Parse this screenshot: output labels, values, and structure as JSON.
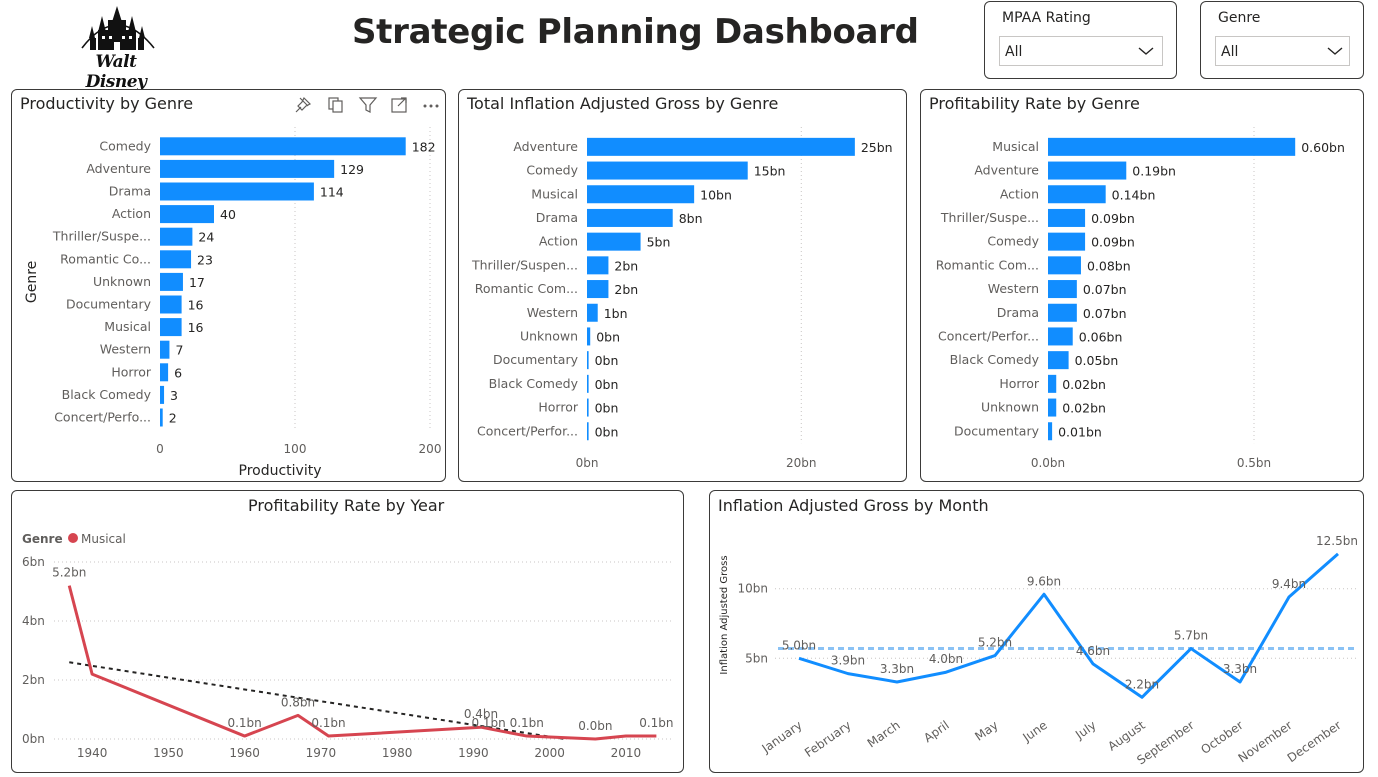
{
  "header": {
    "logo_text": "Walt Disney",
    "title": "Strategic Planning Dashboard"
  },
  "slicers": [
    {
      "label": "MPAA Rating",
      "value": "All"
    },
    {
      "label": "Genre",
      "value": "All"
    }
  ],
  "visuals": {
    "productivity": {
      "title": "Productivity by Genre"
    },
    "gross": {
      "title": "Total Inflation Adjusted Gross by Genre"
    },
    "profit": {
      "title": "Profitability Rate by Genre"
    },
    "year": {
      "title": "Profitability Rate by Year"
    },
    "month": {
      "title": "Inflation Adjusted Gross by Month"
    }
  },
  "colors": {
    "bar": "#118DFF",
    "line_year": "#D64550",
    "line_month": "#118DFF",
    "avg": "#8AC2F5",
    "trend": "#252423"
  },
  "chart_data": [
    {
      "id": "productivity",
      "type": "bar",
      "title": "Productivity by Genre",
      "ylabel": "Genre",
      "xlabel": "Productivity",
      "categories": [
        "Comedy",
        "Adventure",
        "Drama",
        "Action",
        "Thriller/Suspe...",
        "Romantic Co...",
        "Unknown",
        "Documentary",
        "Musical",
        "Western",
        "Horror",
        "Black Comedy",
        "Concert/Perfo..."
      ],
      "values": [
        182,
        129,
        114,
        40,
        24,
        23,
        17,
        16,
        16,
        7,
        6,
        3,
        2
      ],
      "data_labels": [
        "182",
        "129",
        "114",
        "40",
        "24",
        "23",
        "17",
        "16",
        "16",
        "7",
        "6",
        "3",
        "2"
      ],
      "xlim": [
        0,
        200
      ],
      "xticks": [
        0,
        100,
        200
      ],
      "xtick_labels": [
        "0",
        "100",
        "200"
      ],
      "grid": true
    },
    {
      "id": "gross",
      "type": "bar",
      "title": "Total Inflation Adjusted Gross by Genre",
      "categories": [
        "Adventure",
        "Comedy",
        "Musical",
        "Drama",
        "Action",
        "Thriller/Suspen...",
        "Romantic Com...",
        "Western",
        "Unknown",
        "Documentary",
        "Black Comedy",
        "Horror",
        "Concert/Perfor..."
      ],
      "values": [
        25,
        15,
        10,
        8,
        5,
        2,
        2,
        1,
        0.3,
        0.1,
        0.1,
        0.1,
        0.02
      ],
      "data_labels": [
        "25bn",
        "15bn",
        "10bn",
        "8bn",
        "5bn",
        "2bn",
        "2bn",
        "1bn",
        "0bn",
        "0bn",
        "0bn",
        "0bn",
        "0bn"
      ],
      "xlim": [
        0,
        28
      ],
      "xticks": [
        0,
        20
      ],
      "xtick_labels": [
        "0bn",
        "20bn"
      ],
      "grid": true
    },
    {
      "id": "profit",
      "type": "bar",
      "title": "Profitability Rate by Genre",
      "categories": [
        "Musical",
        "Adventure",
        "Action",
        "Thriller/Suspe...",
        "Comedy",
        "Romantic Com...",
        "Western",
        "Drama",
        "Concert/Perfor...",
        "Black Comedy",
        "Horror",
        "Unknown",
        "Documentary"
      ],
      "values": [
        0.6,
        0.19,
        0.14,
        0.09,
        0.09,
        0.08,
        0.07,
        0.07,
        0.06,
        0.05,
        0.02,
        0.02,
        0.01
      ],
      "data_labels": [
        "0.60bn",
        "0.19bn",
        "0.14bn",
        "0.09bn",
        "0.09bn",
        "0.08bn",
        "0.07bn",
        "0.07bn",
        "0.06bn",
        "0.05bn",
        "0.02bn",
        "0.02bn",
        "0.01bn"
      ],
      "xlim": [
        0,
        0.75
      ],
      "xticks": [
        0,
        0.5
      ],
      "xtick_labels": [
        "0.0bn",
        "0.5bn"
      ],
      "grid": true
    },
    {
      "id": "year",
      "type": "line",
      "title": "Profitability Rate by Year",
      "legend": {
        "title": "Genre",
        "items": [
          "Musical"
        ],
        "placement": "top-left"
      },
      "x": [
        1937,
        1940,
        1960,
        1967,
        1971,
        1991,
        1997,
        2006,
        2010,
        2014
      ],
      "y": [
        5.2,
        2.2,
        0.1,
        0.8,
        0.1,
        0.4,
        0.1,
        0.0,
        0.1,
        0.1
      ],
      "point_labels": [
        {
          "x": 1937,
          "label": "5.2bn"
        },
        {
          "x": 1960,
          "label": "0.1bn"
        },
        {
          "x": 1967,
          "label": "0.8bn"
        },
        {
          "x": 1971,
          "label": "0.1bn"
        },
        {
          "x": 1991,
          "label": "0.4bn"
        },
        {
          "x": 1992,
          "label": "0.1bn"
        },
        {
          "x": 1997,
          "label": "0.1bn"
        },
        {
          "x": 2006,
          "label": "0.0bn"
        },
        {
          "x": 2014,
          "label": "0.1bn"
        }
      ],
      "trend": {
        "x": [
          1937,
          2002
        ],
        "y": [
          2.6,
          0.0
        ]
      },
      "xlim": [
        1935,
        2015
      ],
      "ylim": [
        0,
        6
      ],
      "xticks": [
        1940,
        1950,
        1960,
        1970,
        1980,
        1990,
        2000,
        2010
      ],
      "yticks": [
        0,
        2,
        4,
        6
      ],
      "ytick_labels": [
        "0bn",
        "2bn",
        "4bn",
        "6bn"
      ],
      "grid": true
    },
    {
      "id": "month",
      "type": "line",
      "title": "Inflation Adjusted Gross by Month",
      "ylabel": "Inflation Adjusted Gross",
      "categories": [
        "January",
        "February",
        "March",
        "April",
        "May",
        "June",
        "July",
        "August",
        "September",
        "October",
        "November",
        "December"
      ],
      "values": [
        5.0,
        3.9,
        3.3,
        4.0,
        5.2,
        9.6,
        4.6,
        2.2,
        5.7,
        3.3,
        9.4,
        12.5
      ],
      "data_labels": [
        "5.0bn",
        "3.9bn",
        "3.3bn",
        "4.0bn",
        "5.2bn",
        "9.6bn",
        "4.6bn",
        "2.2bn",
        "5.7bn",
        "3.3bn",
        "9.4bn",
        "12.5bn"
      ],
      "average": 5.7,
      "ylim": [
        1,
        14
      ],
      "yticks": [
        5,
        10
      ],
      "ytick_labels": [
        "5bn",
        "10bn"
      ],
      "grid": true
    }
  ]
}
